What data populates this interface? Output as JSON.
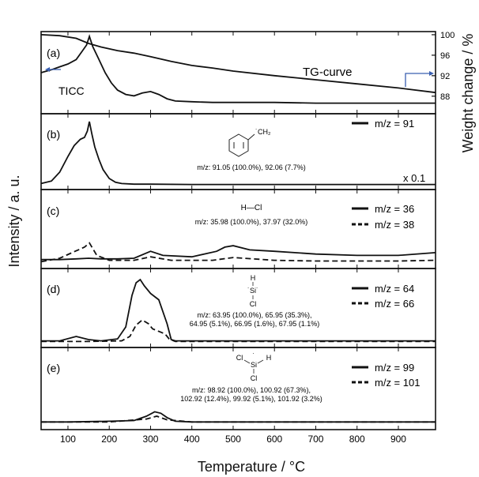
{
  "figure": {
    "xlabel": "Temperature / °C",
    "ylabel_left": "Intensity / a. u.",
    "ylabel_right": "Weight change / %",
    "x_ticks": [
      100,
      200,
      300,
      400,
      500,
      600,
      700,
      800,
      900
    ],
    "xlim": [
      35,
      990
    ]
  },
  "chart_data": [
    {
      "panel": "(a)",
      "type": "line",
      "series": [
        {
          "name": "TICC",
          "axis": "left",
          "x": [
            35,
            60,
            80,
            100,
            120,
            135,
            145,
            152,
            160,
            175,
            190,
            205,
            220,
            240,
            260,
            280,
            300,
            320,
            340,
            360,
            400,
            450,
            500,
            600,
            700,
            800,
            900,
            990
          ],
          "y": [
            50,
            54,
            58,
            62,
            68,
            80,
            88,
            100,
            86,
            68,
            50,
            36,
            26,
            20,
            18,
            22,
            24,
            20,
            14,
            11,
            10,
            9,
            9,
            9,
            8,
            8,
            8,
            8
          ]
        },
        {
          "name": "TG-curve",
          "axis": "right",
          "x": [
            35,
            80,
            120,
            150,
            180,
            220,
            260,
            300,
            350,
            400,
            450,
            500,
            600,
            700,
            800,
            900,
            990
          ],
          "y": [
            100,
            99.8,
            99.3,
            98.3,
            97.6,
            96.9,
            96.4,
            95.7,
            94.8,
            94.0,
            93.5,
            92.9,
            92.0,
            91.2,
            90.4,
            89.6,
            88.7
          ]
        }
      ],
      "y2_ticks": [
        100,
        96,
        92,
        88
      ],
      "y2lim": [
        85.5,
        100.3
      ],
      "labels": {
        "left_series": "TICC",
        "right_series": "TG-curve"
      }
    },
    {
      "panel": "(b)",
      "type": "line",
      "series": [
        {
          "name": "m/z = 91",
          "style": "solid",
          "x": [
            35,
            60,
            80,
            100,
            115,
            130,
            140,
            147,
            152,
            158,
            165,
            175,
            185,
            200,
            215,
            230,
            260,
            300,
            400,
            600,
            800,
            990
          ],
          "y": [
            2,
            6,
            20,
            45,
            62,
            72,
            75,
            85,
            100,
            80,
            60,
            40,
            24,
            10,
            4,
            2,
            1,
            1,
            0.5,
            0.5,
            0.5,
            0.5
          ]
        }
      ],
      "annotation": "m/z: 91.05 (100.0%), 92.06 (7.7%)",
      "structure": "˙CH₂",
      "scale": "x 0.1"
    },
    {
      "panel": "(c)",
      "type": "line",
      "series": [
        {
          "name": "m/z = 36",
          "style": "solid",
          "x": [
            35,
            80,
            120,
            150,
            180,
            220,
            260,
            300,
            330,
            400,
            460,
            480,
            500,
            540,
            600,
            700,
            800,
            900,
            990
          ],
          "y": [
            6,
            6,
            7,
            8,
            7,
            7,
            8,
            18,
            12,
            10,
            18,
            24,
            26,
            20,
            18,
            14,
            12,
            12,
            16
          ]
        },
        {
          "name": "m/z = 38",
          "style": "dashed",
          "x": [
            35,
            80,
            110,
            140,
            152,
            170,
            200,
            260,
            300,
            350,
            450,
            500,
            600,
            700,
            800,
            900,
            990
          ],
          "y": [
            3,
            8,
            16,
            24,
            30,
            12,
            5,
            5,
            10,
            5,
            5,
            9,
            5,
            4,
            4,
            4,
            5
          ]
        }
      ],
      "annotation": "m/z: 35.98 (100.0%), 37.97 (32.0%)",
      "structure": "H—Cl"
    },
    {
      "panel": "(d)",
      "type": "line",
      "series": [
        {
          "name": "m/z = 64",
          "style": "solid",
          "x": [
            35,
            80,
            120,
            150,
            180,
            220,
            240,
            255,
            265,
            275,
            285,
            300,
            320,
            340,
            350,
            360,
            400,
            500,
            700,
            990
          ],
          "y": [
            3,
            3,
            10,
            5,
            3,
            6,
            25,
            75,
            95,
            100,
            90,
            78,
            68,
            30,
            5,
            3,
            3,
            3,
            3,
            3
          ]
        },
        {
          "name": "m/z = 66",
          "style": "dashed",
          "x": [
            35,
            150,
            230,
            250,
            265,
            280,
            295,
            305,
            320,
            335,
            345,
            360,
            500,
            990
          ],
          "y": [
            2,
            2,
            3,
            10,
            28,
            36,
            30,
            22,
            18,
            14,
            6,
            2,
            2,
            2
          ]
        }
      ],
      "annotation": [
        "m/z: 63.95 (100.0%), 65.95 (35.3%),",
        "64.95 (5.1%), 66.95 (1.6%), 67.95 (1.1%)"
      ],
      "structure": [
        "H",
        "˙Si˙",
        "Cl"
      ]
    },
    {
      "panel": "(e)",
      "type": "line",
      "series": [
        {
          "name": "m/z = 99",
          "style": "solid",
          "x": [
            35,
            100,
            200,
            260,
            290,
            310,
            325,
            340,
            360,
            400,
            600,
            800,
            990
          ],
          "y": [
            4,
            4,
            5,
            6,
            12,
            18,
            16,
            10,
            5,
            4,
            4,
            4,
            4
          ]
        },
        {
          "name": "m/z = 101",
          "style": "dashed",
          "x": [
            35,
            100,
            200,
            290,
            315,
            340,
            400,
            990
          ],
          "y": [
            4,
            4,
            4,
            8,
            12,
            7,
            4,
            4
          ]
        }
      ],
      "annotation": [
        "m/z: 98.92 (100.0%), 100.92 (67.3%),",
        "102.92 (12.4%), 99.92 (5.1%), 101.92 (3.2%)"
      ],
      "structure": [
        "Cl",
        "˙",
        "Si",
        "H",
        "Cl"
      ]
    }
  ]
}
